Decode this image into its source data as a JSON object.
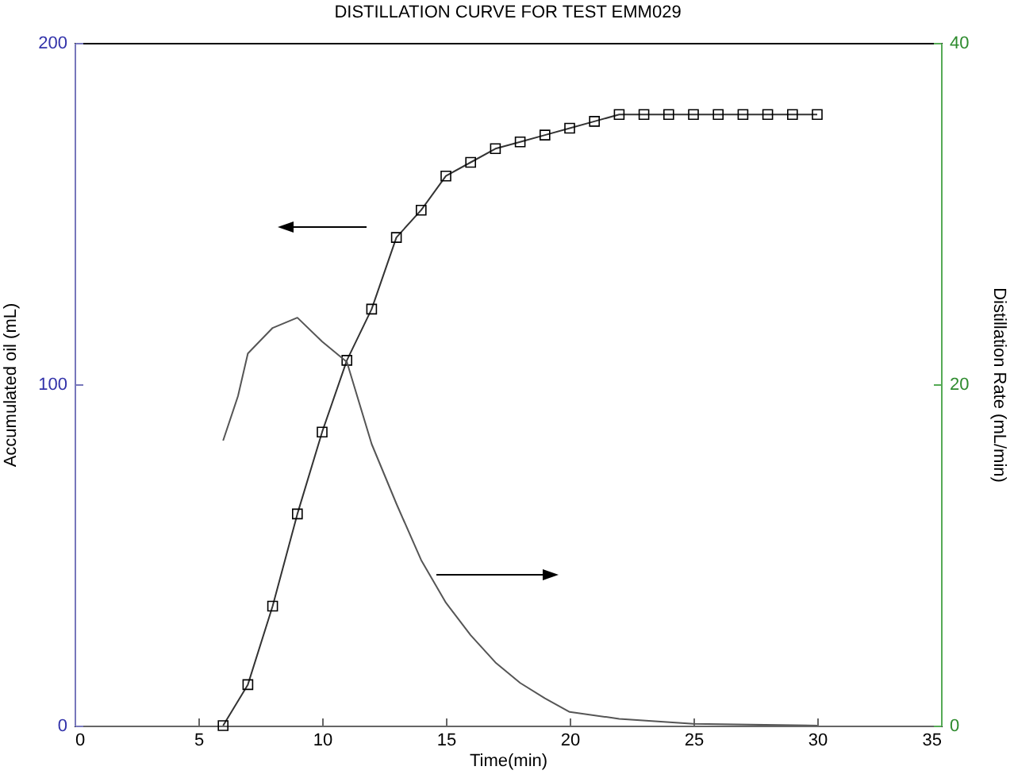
{
  "chart_data": {
    "type": "line",
    "title": "DISTILLATION CURVE FOR TEST EMM029",
    "xlabel": "Time(min)",
    "ylabel": "Accumulated oil (mL)",
    "y2label": "Distillation Rate (mL/min)",
    "series": [
      {
        "marker": "square",
        "color": "#333333",
        "x": [
          6,
          7,
          8,
          9,
          10,
          11,
          12,
          13,
          14,
          15,
          16,
          17,
          18,
          19,
          20,
          21,
          22,
          23,
          24,
          25,
          26,
          27,
          28,
          29,
          30
        ],
        "values": [
          0,
          12,
          35,
          62,
          86,
          107,
          122,
          143,
          151,
          161,
          165,
          169,
          171,
          173,
          175,
          177,
          179,
          179,
          179,
          179,
          179,
          179,
          179,
          179,
          179
        ]
      },
      {
        "axis": "y2",
        "color": "#555555",
        "x": [
          6,
          6.6,
          7,
          8,
          9,
          10,
          11,
          12,
          13,
          14,
          15,
          16,
          17,
          18,
          19,
          20,
          22,
          25,
          30
        ],
        "values": [
          16.7,
          19.3,
          21.8,
          23.3,
          23.9,
          22.5,
          21.3,
          16.5,
          13,
          9.7,
          7.2,
          5.3,
          3.7,
          2.5,
          1.6,
          0.8,
          0.4,
          0.1,
          0
        ]
      }
    ],
    "xlim": [
      0,
      35
    ],
    "xticks": [
      0,
      5,
      10,
      15,
      20,
      25,
      30,
      35
    ],
    "ylim": [
      0,
      200
    ],
    "yticks": [
      0,
      100,
      200
    ],
    "y2lim": [
      0,
      40
    ],
    "y2ticks": [
      0,
      20,
      40
    ],
    "line_style": "solid"
  }
}
